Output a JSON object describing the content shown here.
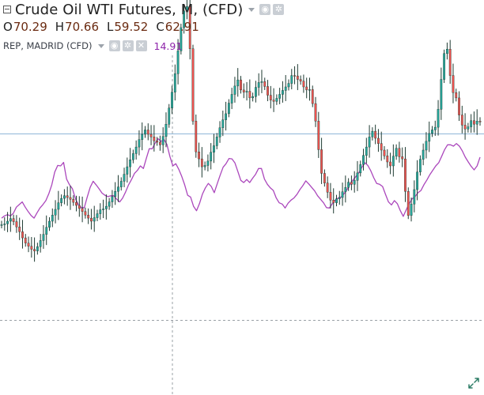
{
  "legend": {
    "title": "Crude Oil WTI Futures, M, (CFD)",
    "open_label": "O",
    "open_value": "70.29",
    "high_label": "H",
    "high_value": "70.66",
    "low_label": "L",
    "low_value": "59.52",
    "close_label": "C",
    "close_value": "62.91",
    "compare_symbol": "REP, MADRID (CFD)",
    "compare_value": "14.91"
  },
  "colors": {
    "up": "#26a69a",
    "down": "#ef5350",
    "candle_dark": "#1e3b32",
    "compare_line": "#ab47bc",
    "compare_value": "#8e24aa",
    "price_line": "#8fb6d8",
    "gridline": "#9aa0a6"
  },
  "icons": [
    "collapse-icon",
    "caret-down-icon",
    "eye-icon",
    "settings-icon",
    "remove-icon",
    "expand-icon"
  ],
  "chart_data": {
    "type": "line",
    "y_range": [
      0,
      90
    ],
    "grid": false,
    "price_line": 59.5,
    "y_marker_line": 17,
    "series": [
      {
        "name": "Crude Oil WTI Futures, M, (CFD)",
        "y": [
          38.8,
          39.0,
          39.6,
          40.2,
          39.5,
          38.3,
          37.2,
          35.8,
          34.6,
          33.9,
          33.2,
          32.8,
          33.8,
          35.2,
          36.6,
          38.2,
          39.6,
          41.0,
          42.3,
          43.8,
          44.8,
          45.4,
          45.0,
          44.6,
          43.9,
          43.2,
          42.5,
          41.8,
          41.0,
          40.3,
          39.6,
          40.4,
          41.3,
          42.2,
          42.4,
          43.0,
          44.0,
          45.2,
          46.4,
          47.4,
          48.7,
          50.3,
          52.0,
          53.6,
          55.0,
          56.5,
          58.2,
          59.4,
          60.4,
          59.4,
          58.8,
          57.9,
          57.6,
          57.0,
          58.9,
          61.7,
          65.4,
          69.0,
          73.2,
          78.4,
          83.7,
          87.5,
          88.5,
          78.9,
          62.4,
          55.4,
          53.8,
          52.0,
          52.3,
          53.3,
          55.3,
          56.8,
          58.8,
          60.9,
          62.7,
          64.1,
          66.5,
          68.5,
          70.4,
          71.8,
          69.5,
          69.0,
          69.2,
          67.7,
          68.0,
          70.1,
          71.2,
          71.4,
          70.3,
          68.3,
          67.2,
          66.9,
          67.6,
          68.5,
          69.4,
          70.2,
          71.0,
          72.8,
          72.7,
          71.9,
          71.5,
          70.2,
          69.5,
          69.6,
          66.4,
          62.4,
          55.9,
          50.5,
          48.3,
          46.2,
          44.4,
          43.8,
          44.7,
          45.0,
          46.3,
          47.3,
          48.5,
          48.0,
          48.9,
          50.6,
          52.5,
          54.6,
          56.5,
          58.8,
          60.1,
          58.5,
          57.3,
          55.8,
          54.5,
          53.1,
          52.2,
          54.4,
          56.2,
          54.3,
          53.8,
          46.4,
          40.9,
          43.5,
          46.8,
          50.8,
          53.7,
          55.8,
          57.8,
          59.6,
          60.4,
          61.0,
          65.1,
          71.9,
          77.8,
          78.8,
          72.8,
          68.9,
          67.7,
          63.8,
          61.5,
          60.6,
          61.1,
          62.5,
          61.7,
          62.4,
          62.2
        ]
      },
      {
        "name": "REP, MADRID (CFD)",
        "y": [
          40.3,
          40.8,
          41.1,
          40.8,
          41.4,
          42.8,
          43.4,
          44.0,
          42.8,
          41.8,
          40.9,
          40.3,
          41.5,
          42.6,
          43.4,
          44.3,
          45.9,
          47.9,
          50.8,
          52.3,
          52.2,
          53.0,
          49.2,
          47.9,
          47.0,
          44.7,
          43.4,
          42.7,
          42.7,
          45.1,
          47.3,
          48.7,
          47.9,
          47.0,
          46.0,
          45.5,
          45.2,
          45.4,
          45.4,
          44.6,
          44.0,
          44.9,
          46.3,
          47.9,
          49.1,
          50.5,
          51.2,
          52.2,
          51.6,
          53.9,
          56.1,
          56.1,
          57.4,
          58.4,
          57.8,
          58.2,
          57.1,
          54.3,
          52.2,
          52.7,
          51.4,
          49.8,
          47.9,
          45.5,
          45.1,
          43.0,
          42.0,
          43.6,
          45.8,
          47.2,
          48.2,
          47.5,
          46.1,
          48.1,
          50.1,
          51.9,
          52.7,
          53.9,
          53.8,
          52.9,
          50.9,
          48.9,
          48.4,
          49.1,
          48.4,
          49.4,
          50.3,
          51.6,
          51.6,
          49.2,
          48.0,
          47.2,
          46.6,
          44.9,
          43.8,
          43.5,
          42.6,
          43.7,
          44.4,
          44.9,
          45.7,
          46.8,
          47.7,
          48.8,
          48.1,
          47.3,
          46.5,
          45.4,
          44.6,
          43.8,
          42.7,
          42.6,
          43.6,
          44.4,
          44.9,
          45.1,
          45.9,
          46.8,
          48.1,
          49.0,
          49.8,
          50.7,
          51.9,
          52.9,
          52.3,
          51.1,
          49.5,
          48.2,
          48.0,
          47.5,
          45.7,
          44.0,
          43.3,
          44.3,
          43.6,
          42.0,
          40.7,
          42.2,
          43.6,
          44.7,
          45.2,
          46.1,
          46.6,
          47.9,
          49.0,
          50.2,
          51.2,
          52.2,
          52.9,
          54.4,
          55.9,
          57.0,
          57.0,
          56.7,
          57.3,
          56.7,
          55.6,
          54.2,
          53.1,
          52.1,
          51.3,
          52.2,
          54.2
        ]
      }
    ],
    "last_close": 62.91,
    "last_compare": 14.91
  }
}
